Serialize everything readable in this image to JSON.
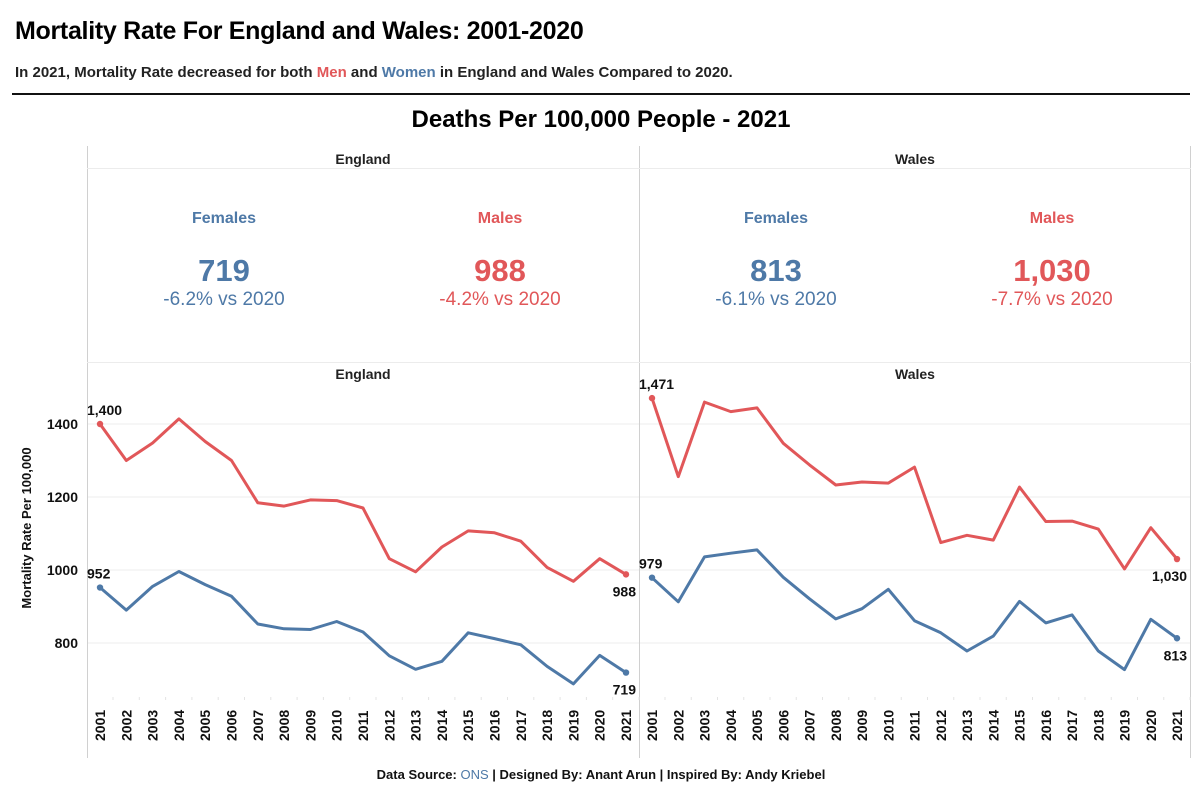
{
  "header": {
    "title": "Mortality Rate For England and Wales: 2001-2020",
    "subtitle_prefix": "In 2021, Mortality Rate decreased for both ",
    "subtitle_men": "Men",
    "subtitle_mid": " and ",
    "subtitle_women": "Women",
    "subtitle_suffix": " in England and Wales Compared to 2020."
  },
  "kpi_section": {
    "title": "Deaths Per 100,000 People - 2021",
    "panels": [
      {
        "region": "England",
        "females": {
          "label": "Females",
          "value": "719",
          "change": "-6.2% vs 2020"
        },
        "males": {
          "label": "Males",
          "value": "988",
          "change": "-4.2% vs 2020"
        }
      },
      {
        "region": "Wales",
        "females": {
          "label": "Females",
          "value": "813",
          "change": "-6.1% vs 2020"
        },
        "males": {
          "label": "Males",
          "value": "1,030",
          "change": "-7.7% vs 2020"
        }
      }
    ]
  },
  "colors": {
    "males": "#E15759",
    "females": "#4E79A7",
    "grid": "#ececec",
    "divider": "#d0d0d0"
  },
  "chart_data": {
    "type": "line",
    "ylabel": "Mortality Rate Per 100,000",
    "xlabel": "",
    "yticks": [
      800,
      1000,
      1200,
      1400
    ],
    "ylim": [
      660,
      1510
    ],
    "grid": true,
    "x": [
      2001,
      2002,
      2003,
      2004,
      2005,
      2006,
      2007,
      2008,
      2009,
      2010,
      2011,
      2012,
      2013,
      2014,
      2015,
      2016,
      2017,
      2018,
      2019,
      2020,
      2021
    ],
    "panels": [
      {
        "title": "England",
        "series": [
          {
            "name": "Males",
            "color": "#E15759",
            "values": [
              1400,
              1300,
              1348,
              1414,
              1352,
              1300,
              1184,
              1175,
              1192,
              1190,
              1170,
              1031,
              995,
              1063,
              1107,
              1102,
              1079,
              1007,
              969,
              1031,
              988
            ],
            "start_label": "1,400",
            "end_label": "988"
          },
          {
            "name": "Females",
            "color": "#4E79A7",
            "values": [
              952,
              890,
              955,
              996,
              960,
              928,
              852,
              839,
              837,
              859,
              830,
              765,
              728,
              750,
              828,
              812,
              795,
              736,
              688,
              766,
              719
            ],
            "start_label": "952",
            "end_label": "719"
          }
        ]
      },
      {
        "title": "Wales",
        "series": [
          {
            "name": "Males",
            "color": "#E15759",
            "values": [
              1471,
              1256,
              1460,
              1434,
              1444,
              1347,
              1288,
              1233,
              1241,
              1238,
              1282,
              1075,
              1095,
              1082,
              1227,
              1133,
              1134,
              1112,
              1003,
              1116,
              1030
            ],
            "start_label": "1,471",
            "end_label": "1,030"
          },
          {
            "name": "Females",
            "color": "#4E79A7",
            "values": [
              979,
              913,
              1036,
              1046,
              1055,
              980,
              921,
              866,
              894,
              947,
              861,
              828,
              778,
              819,
              914,
              855,
              877,
              778,
              727,
              865,
              813
            ],
            "start_label": "979",
            "end_label": "813"
          }
        ]
      }
    ]
  },
  "footer": {
    "prefix": "Data Source: ",
    "source": "ONS",
    "suffix": " | Designed By: Anant Arun | Inspired By: Andy Kriebel"
  }
}
